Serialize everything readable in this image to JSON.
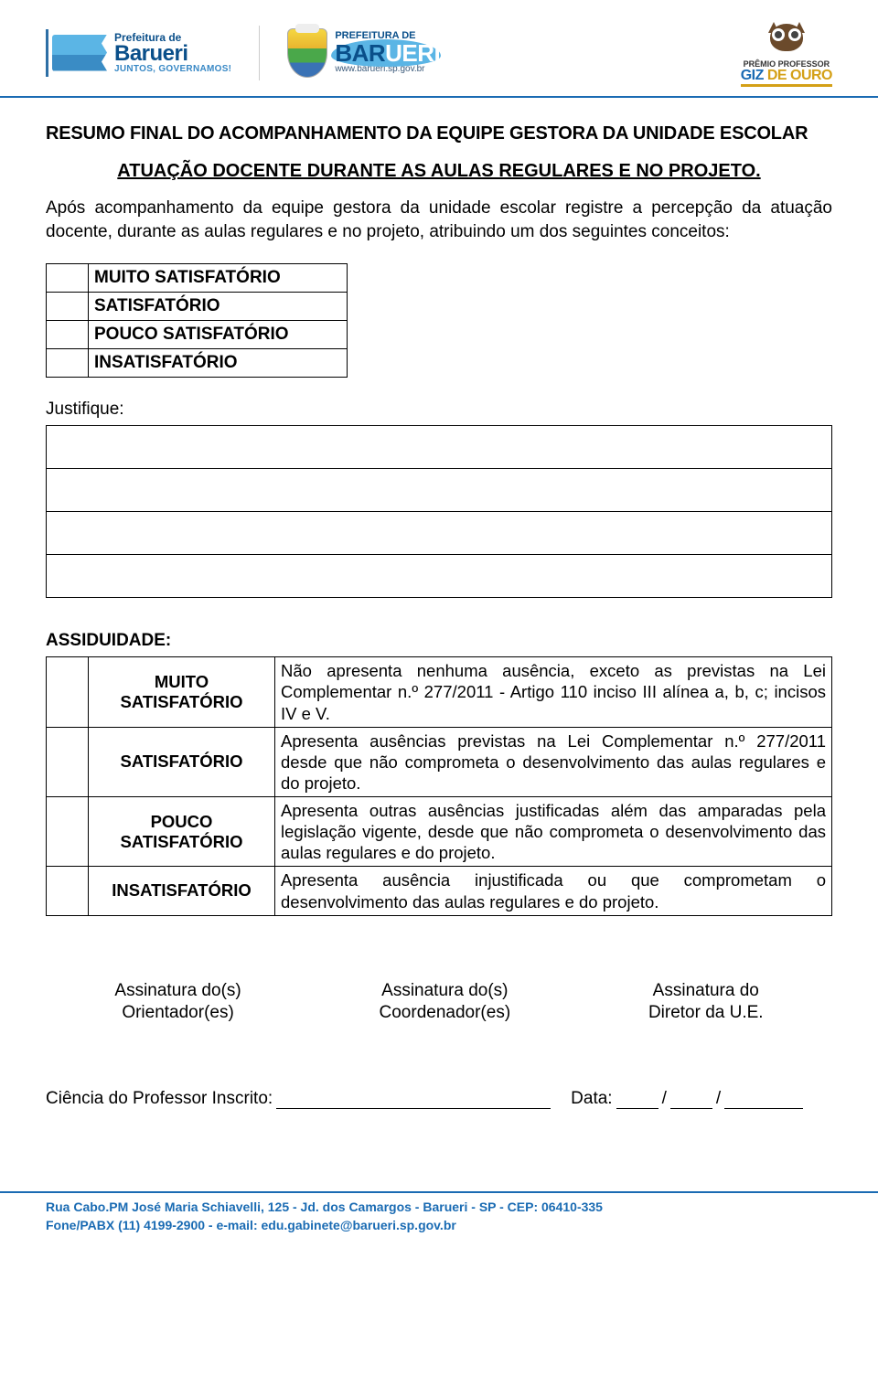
{
  "header": {
    "logo1": {
      "top": "Prefeitura de",
      "main": "Barueri",
      "tag": "JUNTOS, GOVERNAMOS!"
    },
    "logo2": {
      "top": "PREFEITURA DE",
      "main_dark": "BAR",
      "main_light": "UERI",
      "url": "www.barueri.sp.gov.br"
    },
    "badge": {
      "line1": "PRÊMIO PROFESSOR",
      "line2_part1": "GIZ",
      "line2_part2": " DE OURO"
    }
  },
  "title": "RESUMO FINAL DO ACOMPANHAMENTO DA EQUIPE GESTORA DA UNIDADE ESCOLAR",
  "subtitle": "ATUAÇÃO DOCENTE DURANTE AS AULAS REGULARES E NO PROJETO.",
  "intro_paragraph": "Após acompanhamento da equipe gestora da unidade escolar registre a percepção da atuação docente, durante as aulas regulares e no projeto, atribuindo um dos seguintes conceitos:",
  "ratings": [
    "MUITO SATISFATÓRIO",
    "SATISFATÓRIO",
    "POUCO SATISFATÓRIO",
    "INSATISFATÓRIO"
  ],
  "justify_label": "Justifique:",
  "justify_line_count": 4,
  "assiduidade": {
    "heading": "ASSIDUIDADE:",
    "rows": [
      {
        "label": "MUITO SATISFATÓRIO",
        "desc": "Não apresenta nenhuma ausência, exceto as previstas na Lei Complementar n.º 277/2011 - Artigo 110 inciso III alínea a, b, c; incisos IV e V."
      },
      {
        "label": "SATISFATÓRIO",
        "desc": "Apresenta ausências previstas na Lei Complementar n.º 277/2011 desde que não comprometa o desenvolvimento das aulas regulares e do projeto."
      },
      {
        "label": "POUCO SATISFATÓRIO",
        "desc": "Apresenta outras ausências justificadas além das amparadas pela legislação vigente, desde que não comprometa o desenvolvimento das aulas regulares e do projeto."
      },
      {
        "label": "INSATISFATÓRIO",
        "desc": "Apresenta ausência injustificada ou que comprometam o desenvolvimento das aulas regulares e do projeto."
      }
    ]
  },
  "signatures": [
    {
      "line1": "Assinatura do(s)",
      "line2": "Orientador(es)"
    },
    {
      "line1": "Assinatura do(s)",
      "line2": "Coordenador(es)"
    },
    {
      "line1": "Assinatura do",
      "line2": "Diretor da U.E."
    }
  ],
  "ciencia": {
    "label": "Ciência do Professor Inscrito:",
    "date_label": "Data:",
    "sep": "/"
  },
  "footer": {
    "line1": "Rua Cabo.PM José Maria Schiavelli, 125 - Jd. dos Camargos - Barueri - SP - CEP: 06410-335",
    "line2": "Fone/PABX (11) 4199-2900 -  e-mail: edu.gabinete@barueri.sp.gov.br"
  },
  "colors": {
    "rule": "#1a6bb3",
    "text": "#000000",
    "footer_text": "#1a6bb3"
  }
}
